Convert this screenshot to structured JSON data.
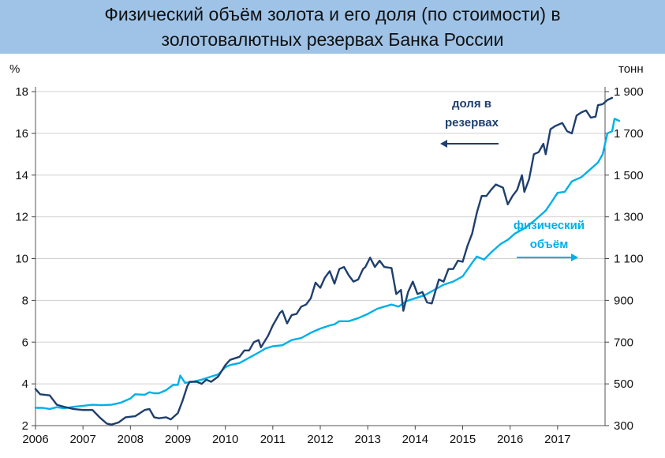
{
  "chart_data": {
    "type": "line",
    "title_lines": [
      "Физический объём золота и его доля (по стоимости) в",
      "золотовалютных резервах Банка России"
    ],
    "left_axis": {
      "unit": "%",
      "ticks": [
        2,
        4,
        6,
        8,
        10,
        12,
        14,
        16,
        18
      ],
      "ylim": [
        2,
        18
      ]
    },
    "right_axis": {
      "unit": "тонн",
      "ticks": [
        "300",
        "500",
        "700",
        "900",
        "1 100",
        "1 300",
        "1 500",
        "1 700",
        "1 900"
      ],
      "ylim": [
        300,
        1900
      ]
    },
    "x_axis": {
      "ticks": [
        "2006",
        "2007",
        "2008",
        "2009",
        "2010",
        "2011",
        "2012",
        "2013",
        "2014",
        "2015",
        "2016",
        "2017"
      ],
      "xlim": [
        2006,
        2018
      ]
    },
    "grid": "horizontal",
    "series": [
      {
        "name": "доля в резервах",
        "axis": "left",
        "color": "#1f3f6e",
        "points": [
          [
            2006.0,
            3.75
          ],
          [
            2006.1,
            3.5
          ],
          [
            2006.3,
            3.45
          ],
          [
            2006.45,
            3.0
          ],
          [
            2006.6,
            2.9
          ],
          [
            2006.8,
            2.8
          ],
          [
            2007.0,
            2.75
          ],
          [
            2007.2,
            2.75
          ],
          [
            2007.35,
            2.4
          ],
          [
            2007.5,
            2.1
          ],
          [
            2007.6,
            2.05
          ],
          [
            2007.75,
            2.15
          ],
          [
            2007.9,
            2.4
          ],
          [
            2008.1,
            2.45
          ],
          [
            2008.3,
            2.75
          ],
          [
            2008.4,
            2.8
          ],
          [
            2008.5,
            2.4
          ],
          [
            2008.6,
            2.35
          ],
          [
            2008.75,
            2.4
          ],
          [
            2008.85,
            2.3
          ],
          [
            2009.0,
            2.6
          ],
          [
            2009.1,
            3.2
          ],
          [
            2009.2,
            3.9
          ],
          [
            2009.25,
            4.1
          ],
          [
            2009.4,
            4.1
          ],
          [
            2009.5,
            4.0
          ],
          [
            2009.6,
            4.2
          ],
          [
            2009.7,
            4.1
          ],
          [
            2009.85,
            4.35
          ],
          [
            2010.0,
            4.9
          ],
          [
            2010.1,
            5.15
          ],
          [
            2010.3,
            5.3
          ],
          [
            2010.4,
            5.6
          ],
          [
            2010.5,
            5.6
          ],
          [
            2010.6,
            6.0
          ],
          [
            2010.7,
            6.1
          ],
          [
            2010.75,
            5.75
          ],
          [
            2010.9,
            6.3
          ],
          [
            2011.0,
            6.8
          ],
          [
            2011.15,
            7.4
          ],
          [
            2011.2,
            7.5
          ],
          [
            2011.3,
            6.9
          ],
          [
            2011.4,
            7.3
          ],
          [
            2011.5,
            7.35
          ],
          [
            2011.6,
            7.7
          ],
          [
            2011.7,
            7.8
          ],
          [
            2011.8,
            8.1
          ],
          [
            2011.9,
            8.85
          ],
          [
            2012.0,
            8.6
          ],
          [
            2012.1,
            9.1
          ],
          [
            2012.2,
            9.4
          ],
          [
            2012.3,
            8.8
          ],
          [
            2012.4,
            9.5
          ],
          [
            2012.5,
            9.6
          ],
          [
            2012.6,
            9.2
          ],
          [
            2012.7,
            8.9
          ],
          [
            2012.8,
            9.0
          ],
          [
            2012.9,
            9.5
          ],
          [
            2012.95,
            9.6
          ],
          [
            2013.05,
            10.05
          ],
          [
            2013.15,
            9.6
          ],
          [
            2013.25,
            9.9
          ],
          [
            2013.35,
            9.6
          ],
          [
            2013.5,
            9.55
          ],
          [
            2013.6,
            8.3
          ],
          [
            2013.7,
            8.5
          ],
          [
            2013.75,
            7.5
          ],
          [
            2013.85,
            8.4
          ],
          [
            2013.95,
            8.9
          ],
          [
            2014.05,
            8.3
          ],
          [
            2014.15,
            8.4
          ],
          [
            2014.25,
            7.9
          ],
          [
            2014.35,
            7.85
          ],
          [
            2014.5,
            9.0
          ],
          [
            2014.6,
            8.9
          ],
          [
            2014.7,
            9.5
          ],
          [
            2014.8,
            9.5
          ],
          [
            2014.9,
            9.9
          ],
          [
            2015.0,
            9.85
          ],
          [
            2015.1,
            10.6
          ],
          [
            2015.2,
            11.2
          ],
          [
            2015.3,
            12.2
          ],
          [
            2015.4,
            13.0
          ],
          [
            2015.5,
            13.0
          ],
          [
            2015.6,
            13.3
          ],
          [
            2015.7,
            13.55
          ],
          [
            2015.85,
            13.4
          ],
          [
            2015.95,
            12.6
          ],
          [
            2016.05,
            13.0
          ],
          [
            2016.15,
            13.3
          ],
          [
            2016.25,
            14.0
          ],
          [
            2016.3,
            13.2
          ],
          [
            2016.4,
            13.8
          ],
          [
            2016.5,
            15.0
          ],
          [
            2016.6,
            15.1
          ],
          [
            2016.7,
            15.5
          ],
          [
            2016.75,
            15.0
          ],
          [
            2016.85,
            16.2
          ],
          [
            2016.95,
            16.35
          ],
          [
            2017.1,
            16.5
          ],
          [
            2017.2,
            16.1
          ],
          [
            2017.3,
            16.0
          ],
          [
            2017.4,
            16.85
          ],
          [
            2017.5,
            17.0
          ],
          [
            2017.6,
            17.1
          ],
          [
            2017.7,
            16.75
          ],
          [
            2017.8,
            16.8
          ],
          [
            2017.85,
            17.35
          ],
          [
            2017.95,
            17.4
          ],
          [
            2018.05,
            17.6
          ],
          [
            2018.15,
            17.7
          ]
        ]
      },
      {
        "name": "физический объём",
        "axis": "right",
        "color": "#00b0e8",
        "points": [
          [
            2006.0,
            385
          ],
          [
            2006.15,
            385
          ],
          [
            2006.3,
            380
          ],
          [
            2006.45,
            388
          ],
          [
            2006.6,
            383
          ],
          [
            2006.8,
            390
          ],
          [
            2007.0,
            395
          ],
          [
            2007.2,
            400
          ],
          [
            2007.4,
            398
          ],
          [
            2007.6,
            400
          ],
          [
            2007.8,
            410
          ],
          [
            2008.0,
            430
          ],
          [
            2008.1,
            450
          ],
          [
            2008.3,
            448
          ],
          [
            2008.4,
            460
          ],
          [
            2008.5,
            455
          ],
          [
            2008.6,
            455
          ],
          [
            2008.75,
            470
          ],
          [
            2008.9,
            495
          ],
          [
            2009.0,
            495
          ],
          [
            2009.05,
            540
          ],
          [
            2009.15,
            505
          ],
          [
            2009.3,
            510
          ],
          [
            2009.5,
            520
          ],
          [
            2009.7,
            535
          ],
          [
            2009.85,
            545
          ],
          [
            2010.0,
            580
          ],
          [
            2010.1,
            590
          ],
          [
            2010.3,
            600
          ],
          [
            2010.5,
            625
          ],
          [
            2010.7,
            650
          ],
          [
            2010.85,
            670
          ],
          [
            2011.0,
            680
          ],
          [
            2011.2,
            685
          ],
          [
            2011.4,
            710
          ],
          [
            2011.6,
            720
          ],
          [
            2011.8,
            745
          ],
          [
            2012.0,
            765
          ],
          [
            2012.2,
            780
          ],
          [
            2012.3,
            785
          ],
          [
            2012.4,
            800
          ],
          [
            2012.6,
            800
          ],
          [
            2012.8,
            815
          ],
          [
            2013.0,
            835
          ],
          [
            2013.2,
            860
          ],
          [
            2013.35,
            870
          ],
          [
            2013.5,
            880
          ],
          [
            2013.65,
            870
          ],
          [
            2013.8,
            895
          ],
          [
            2014.0,
            910
          ],
          [
            2014.2,
            925
          ],
          [
            2014.4,
            950
          ],
          [
            2014.6,
            975
          ],
          [
            2014.8,
            990
          ],
          [
            2015.0,
            1015
          ],
          [
            2015.2,
            1080
          ],
          [
            2015.3,
            1110
          ],
          [
            2015.45,
            1095
          ],
          [
            2015.6,
            1130
          ],
          [
            2015.8,
            1170
          ],
          [
            2015.95,
            1190
          ],
          [
            2016.1,
            1220
          ],
          [
            2016.3,
            1245
          ],
          [
            2016.5,
            1280
          ],
          [
            2016.65,
            1310
          ],
          [
            2016.75,
            1330
          ],
          [
            2016.9,
            1380
          ],
          [
            2017.0,
            1415
          ],
          [
            2017.15,
            1420
          ],
          [
            2017.3,
            1470
          ],
          [
            2017.5,
            1490
          ],
          [
            2017.7,
            1530
          ],
          [
            2017.85,
            1560
          ],
          [
            2017.95,
            1600
          ],
          [
            2018.05,
            1700
          ],
          [
            2018.15,
            1710
          ],
          [
            2018.2,
            1770
          ],
          [
            2018.3,
            1760
          ]
        ]
      }
    ],
    "annotations": [
      {
        "lines": [
          "доля в",
          "резервах"
        ],
        "color": "#1f3f6e",
        "arrow": "left"
      },
      {
        "lines": [
          "физический",
          "объём"
        ],
        "color": "#00b0e8",
        "arrow": "right"
      }
    ]
  }
}
